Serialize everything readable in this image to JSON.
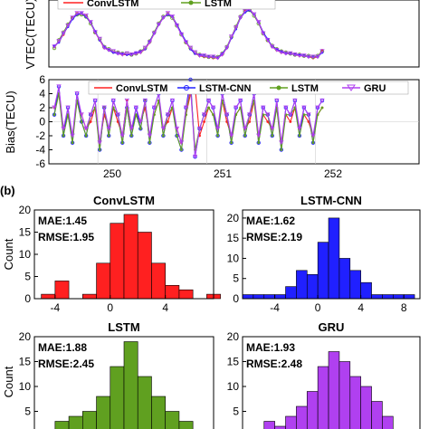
{
  "panel_label": "(b)",
  "colors": {
    "convlstm": "#ff2020",
    "lstm_cnn": "#2020ff",
    "lstm": "#60a020",
    "gru": "#b040f0"
  },
  "chart_data": [
    {
      "type": "line",
      "ylabel": "VTEC(TECU)",
      "legend": {
        "placement": "top",
        "entries": [
          "ConvLSTM",
          "LSTM"
        ]
      },
      "xlim": [
        249.55,
        252.95
      ],
      "ylim": [
        0,
        60
      ],
      "yticks": [],
      "xticks": [],
      "x_start": 249.6,
      "x_step": 0.0417,
      "series": [
        {
          "name": "ConvLSTM",
          "color": "#ff2020",
          "values": [
            18,
            23,
            29,
            37,
            44,
            48,
            48,
            46,
            40,
            31,
            24,
            17,
            15,
            13,
            12,
            11,
            11,
            11,
            12,
            13,
            16,
            22,
            30,
            38,
            44,
            48,
            45,
            38,
            30,
            22,
            16,
            12,
            10,
            9,
            9,
            8,
            8,
            11,
            17,
            26,
            35,
            44,
            50,
            52,
            47,
            40,
            31,
            24,
            18,
            15,
            13,
            12,
            12,
            11,
            10,
            10,
            9,
            8,
            9,
            15
          ]
        },
        {
          "name": "LSTM",
          "color": "#60a020",
          "values": [
            17,
            24,
            31,
            38,
            44,
            47,
            47,
            45,
            39,
            31,
            25,
            18,
            16,
            14,
            13,
            12,
            12,
            11,
            12,
            14,
            17,
            23,
            31,
            39,
            45,
            47,
            44,
            37,
            29,
            22,
            17,
            13,
            11,
            10,
            9,
            9,
            9,
            12,
            18,
            27,
            36,
            45,
            50,
            51,
            46,
            39,
            30,
            24,
            19,
            16,
            14,
            13,
            12,
            11,
            11,
            10,
            10,
            9,
            10,
            14
          ]
        },
        {
          "name": "LSTM-CNN",
          "color": "#2020ff",
          "values": [
            19,
            22,
            30,
            36,
            43,
            47,
            48,
            45,
            40,
            32,
            24,
            18,
            15,
            13,
            12,
            12,
            11,
            11,
            13,
            14,
            16,
            23,
            30,
            38,
            44,
            47,
            45,
            38,
            30,
            23,
            16,
            12,
            11,
            10,
            9,
            9,
            8,
            12,
            17,
            26,
            34,
            44,
            49,
            51,
            47,
            40,
            31,
            25,
            18,
            16,
            14,
            12,
            12,
            11,
            11,
            10,
            9,
            9,
            9,
            13
          ]
        },
        {
          "name": "GRU",
          "color": "#b040f0",
          "values": [
            18,
            23,
            30,
            37,
            44,
            48,
            48,
            46,
            40,
            31,
            25,
            17,
            15,
            14,
            12,
            11,
            12,
            11,
            12,
            13,
            17,
            22,
            30,
            38,
            44,
            48,
            45,
            37,
            29,
            22,
            17,
            13,
            10,
            10,
            9,
            9,
            8,
            11,
            17,
            27,
            35,
            44,
            50,
            52,
            47,
            40,
            30,
            24,
            18,
            15,
            13,
            12,
            12,
            11,
            10,
            10,
            9,
            9,
            9,
            14
          ]
        }
      ]
    },
    {
      "type": "line",
      "ylabel": "Bias(TECU)",
      "legend": {
        "placement": "top",
        "entries": [
          "ConvLSTM",
          "LSTM-CNN",
          "LSTM",
          "GRU"
        ]
      },
      "xlim": [
        249.55,
        252.95
      ],
      "ylim": [
        -6,
        6
      ],
      "yticks": [
        "-6",
        "-4",
        "-2",
        "0",
        "2",
        "4",
        "6"
      ],
      "xticks": [
        "250",
        "251",
        "252"
      ],
      "x_start": 249.6,
      "x_step": 0.0417,
      "series": [
        {
          "name": "ConvLSTM",
          "color": "#ff2020",
          "values": [
            2,
            4,
            -1,
            1,
            -2,
            3,
            1,
            -1,
            0,
            2,
            -3,
            1,
            -1,
            2,
            0,
            -2,
            3,
            -1,
            1,
            0,
            2,
            -2,
            1,
            3,
            -1,
            0,
            2,
            -1,
            -3,
            1,
            4,
            5,
            -2,
            0,
            2,
            1,
            -1,
            3,
            0,
            -2,
            1,
            2,
            -1,
            0,
            3,
            -2,
            1,
            0,
            -1,
            2,
            -3,
            1,
            0,
            2,
            -1,
            1,
            0,
            -2,
            1,
            2
          ]
        },
        {
          "name": "LSTM-CNN",
          "color": "#2020ff",
          "values": [
            1,
            5,
            -2,
            2,
            -3,
            4,
            0,
            -2,
            1,
            3,
            -4,
            2,
            -2,
            3,
            1,
            -3,
            2,
            -2,
            2,
            -1,
            3,
            -3,
            2,
            4,
            -2,
            1,
            3,
            -2,
            -4,
            2,
            6,
            -5,
            -1,
            1,
            3,
            2,
            -2,
            4,
            1,
            -3,
            2,
            3,
            -2,
            1,
            4,
            -3,
            2,
            1,
            -2,
            3,
            -4,
            2,
            1,
            3,
            -2,
            2,
            1,
            -3,
            2,
            3
          ]
        },
        {
          "name": "LSTM",
          "color": "#60a020",
          "values": [
            1,
            4,
            -2,
            1,
            -3,
            3,
            0,
            -2,
            1,
            2,
            -4,
            2,
            -2,
            2,
            1,
            -3,
            2,
            -2,
            1,
            -1,
            3,
            -3,
            1,
            3,
            -2,
            1,
            2,
            -2,
            -4,
            1,
            5,
            -4,
            -1,
            1,
            2,
            1,
            -2,
            3,
            1,
            -3,
            1,
            2,
            -2,
            1,
            3,
            -3,
            1,
            1,
            -2,
            2,
            -4,
            1,
            1,
            2,
            -2,
            1,
            1,
            -3,
            1,
            2
          ]
        },
        {
          "name": "GRU",
          "color": "#b040f0",
          "values": [
            2,
            5,
            -1,
            2,
            -2,
            4,
            1,
            -1,
            1,
            3,
            -3,
            2,
            -1,
            3,
            1,
            -2,
            3,
            -1,
            2,
            0,
            3,
            -2,
            2,
            4,
            -1,
            1,
            3,
            -1,
            -3,
            2,
            5,
            -5,
            -1,
            1,
            3,
            2,
            -1,
            4,
            1,
            -2,
            2,
            3,
            -1,
            1,
            4,
            -2,
            2,
            1,
            -1,
            3,
            -3,
            2,
            1,
            3,
            -1,
            2,
            1,
            -2,
            2,
            3
          ]
        }
      ]
    },
    {
      "type": "bar",
      "title": "ConvLSTM",
      "ylabel": "Count",
      "color": "#ff2020",
      "annotations": [
        "MAE:1.45",
        "RMSE:1.95"
      ],
      "bin_edges": [
        -5,
        -4,
        -3,
        -2,
        -1,
        0,
        1,
        2,
        3,
        4,
        5,
        6,
        7
      ],
      "values": [
        1,
        4,
        0,
        1,
        8,
        17,
        19,
        15,
        8,
        3,
        2,
        0,
        1
      ],
      "xlim": [
        -5.5,
        7.5
      ],
      "ylim": [
        0,
        20
      ],
      "xticks": [
        "-4",
        "0",
        "4"
      ],
      "yticks": [
        "0",
        "5",
        "10",
        "15",
        "20"
      ]
    },
    {
      "type": "bar",
      "title": "LSTM-CNN",
      "ylabel": "",
      "color": "#2020ff",
      "annotations": [
        "MAE:1.62",
        "RMSE:2.19"
      ],
      "bin_edges": [
        -7,
        -6,
        -5,
        -4,
        -3,
        -2,
        -1,
        0,
        1,
        2,
        3,
        4,
        5,
        6,
        7,
        8
      ],
      "values": [
        1,
        1,
        1,
        1,
        3,
        7,
        6,
        14,
        20,
        10,
        7,
        4,
        1,
        1,
        1,
        1
      ],
      "xlim": [
        -7,
        9.5
      ],
      "ylim": [
        0,
        22
      ],
      "xticks": [
        "-4",
        "0",
        "4",
        "8"
      ],
      "yticks": [
        "0",
        "5",
        "10",
        "15",
        "20"
      ]
    },
    {
      "type": "bar",
      "title": "LSTM",
      "ylabel": "Count",
      "color": "#60a020",
      "annotations": [
        "MAE:1.88",
        "RMSE:2.45"
      ],
      "bin_edges": [
        -5,
        -4,
        -3,
        -2,
        -1,
        0,
        1,
        2,
        3,
        4,
        5,
        6
      ],
      "values": [
        1,
        3,
        4,
        5,
        8,
        14,
        19,
        12,
        8,
        5,
        3,
        1
      ],
      "xlim": [
        -5.5,
        7.5
      ],
      "ylim": [
        0,
        20
      ],
      "xticks": [],
      "yticks": [
        "0",
        "5",
        "10",
        "15",
        "20"
      ]
    },
    {
      "type": "bar",
      "title": "GRU",
      "ylabel": "",
      "color": "#b040f0",
      "annotations": [
        "MAE:1.93",
        "RMSE:2.48"
      ],
      "bin_edges": [
        -6,
        -5,
        -4,
        -3,
        -2,
        -1,
        0,
        1,
        2,
        3,
        4,
        5,
        6,
        7,
        8
      ],
      "values": [
        1,
        3,
        2,
        4,
        6,
        9,
        14,
        17,
        15,
        12,
        10,
        7,
        4,
        1,
        1
      ],
      "xlim": [
        -7,
        9.5
      ],
      "ylim": [
        0,
        20
      ],
      "xticks": [],
      "yticks": [
        "0",
        "5",
        "10",
        "15",
        "20"
      ]
    }
  ]
}
